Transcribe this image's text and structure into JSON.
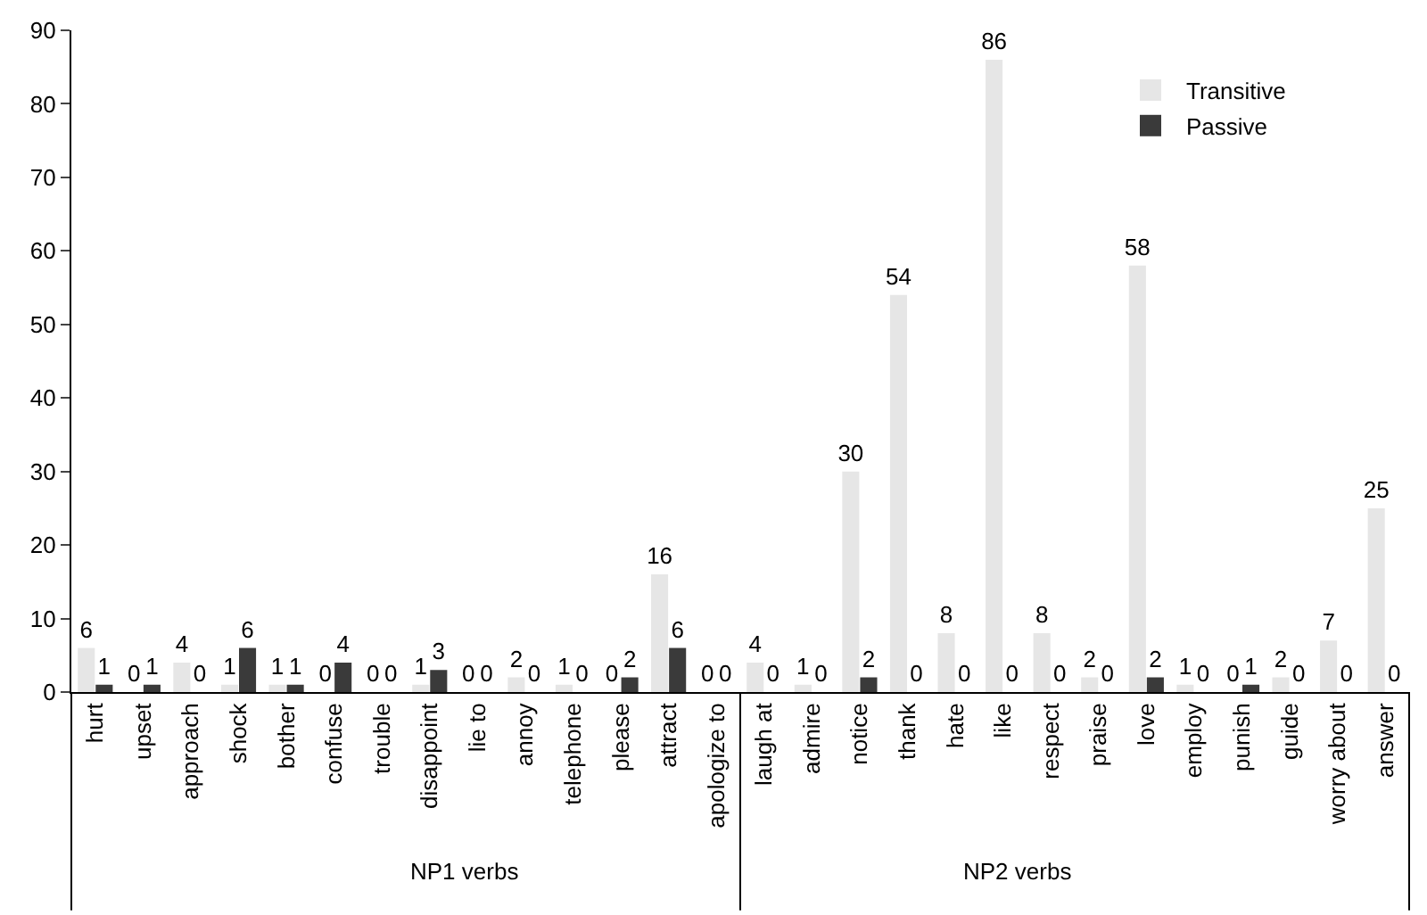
{
  "chart_data": {
    "type": "bar",
    "categories": [
      "hurt",
      "upset",
      "approach",
      "shock",
      "bother",
      "confuse",
      "trouble",
      "disappoint",
      "lie to",
      "annoy",
      "telephone",
      "please",
      "attract",
      "apologize to",
      "laugh at",
      "admire",
      "notice",
      "thank",
      "hate",
      "like",
      "respect",
      "praise",
      "love",
      "employ",
      "punish",
      "guide",
      "worry about",
      "answer"
    ],
    "series": [
      {
        "name": "Transitive",
        "color": "#e6e6e6",
        "values": [
          6,
          0,
          4,
          1,
          1,
          0,
          0,
          1,
          0,
          2,
          1,
          0,
          16,
          0,
          4,
          1,
          30,
          54,
          8,
          86,
          8,
          2,
          58,
          1,
          0,
          2,
          7,
          25
        ]
      },
      {
        "name": "Passive",
        "color": "#3a3a3a",
        "values": [
          1,
          1,
          0,
          6,
          1,
          4,
          0,
          3,
          0,
          0,
          0,
          2,
          6,
          0,
          0,
          0,
          2,
          0,
          0,
          0,
          0,
          0,
          2,
          0,
          1,
          0,
          0,
          0
        ]
      }
    ],
    "ylim": [
      0,
      90
    ],
    "yticks": [
      0,
      10,
      20,
      30,
      40,
      50,
      60,
      70,
      80,
      90
    ],
    "legend": "top right",
    "data_labels": true,
    "annotations": [
      "NP1 verbs",
      "NP2 verbs"
    ]
  }
}
